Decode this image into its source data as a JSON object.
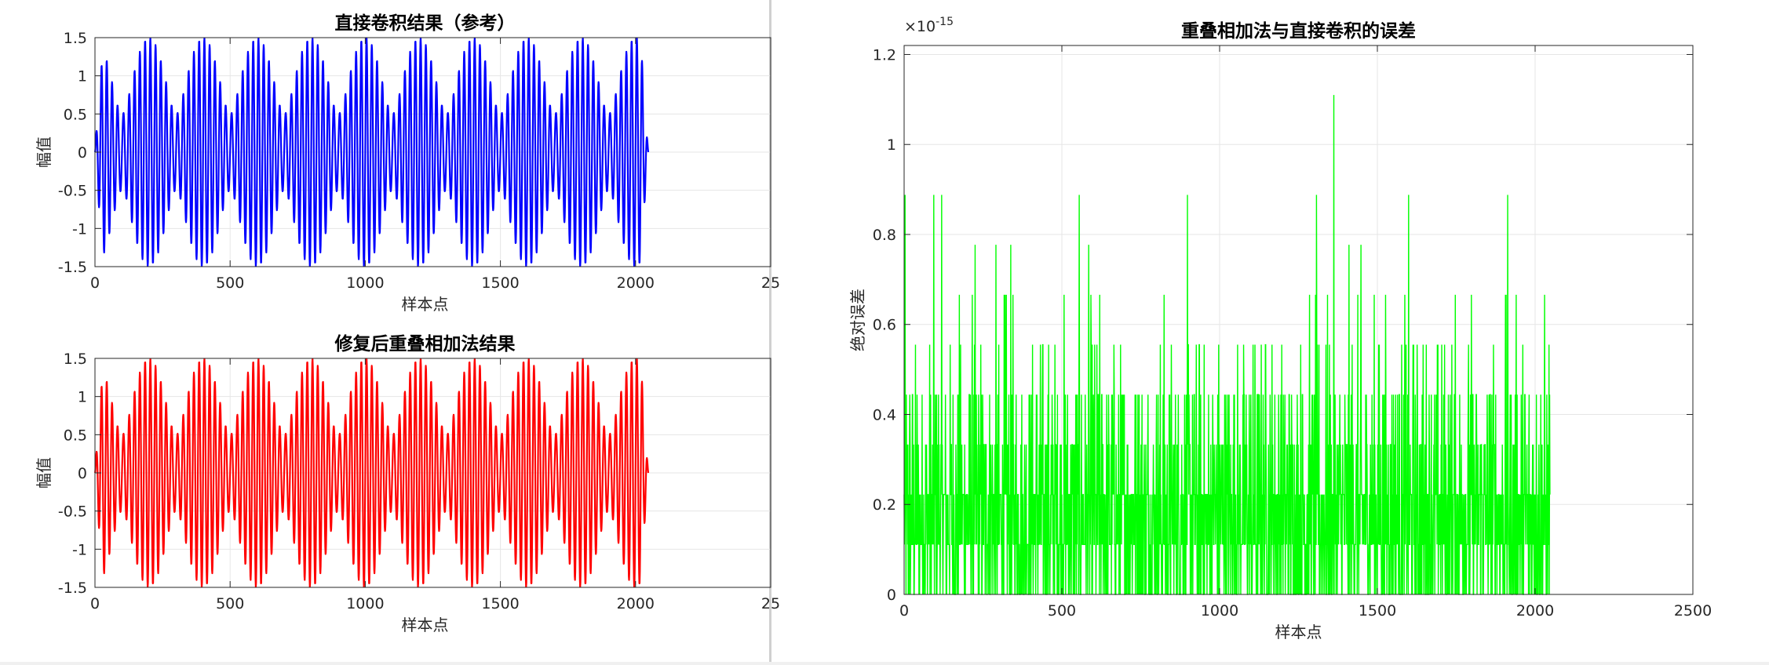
{
  "figure_left": {
    "bg_panel": "#ffffff",
    "bg_right": "#f0f0f0"
  },
  "chart_data": [
    {
      "id": "conv-direct",
      "type": "line",
      "title": "直接卷积结果（参考）",
      "xlabel": "样本点",
      "ylabel": "幅值",
      "xlim": [
        0,
        2500
      ],
      "ylim": [
        -1.5,
        1.5
      ],
      "xticks": [
        0,
        500,
        1000,
        1500,
        2000
      ],
      "xtick_labels": [
        "0",
        "500",
        "1000",
        "1500",
        "2000"
      ],
      "partial_xtick_label": "25",
      "yticks": [
        -1.5,
        -1,
        -0.5,
        0,
        0.5,
        1,
        1.5
      ],
      "ytick_labels": [
        "-1.5",
        "-1",
        "-0.5",
        "0",
        "0.5",
        "1",
        "1.5"
      ],
      "grid": true,
      "color": "#0000ff",
      "signal": {
        "x_start": 0,
        "x_end": 2047,
        "ramp_end": 30,
        "ramp_start_down": 2020,
        "components": [
          {
            "freq_cycles_per_sample": 0.05,
            "amp": 1.0
          },
          {
            "freq_cycles_per_sample": 0.055,
            "amp": 0.5
          }
        ],
        "max_abs": 1.5
      }
    },
    {
      "id": "ola-fixed",
      "type": "line",
      "title": "修复后重叠相加法结果",
      "xlabel": "样本点",
      "ylabel": "幅值",
      "xlim": [
        0,
        2500
      ],
      "ylim": [
        -1.5,
        1.5
      ],
      "xticks": [
        0,
        500,
        1000,
        1500,
        2000
      ],
      "xtick_labels": [
        "0",
        "500",
        "1000",
        "1500",
        "2000"
      ],
      "partial_xtick_label": "25",
      "yticks": [
        -1.5,
        -1,
        -0.5,
        0,
        0.5,
        1,
        1.5
      ],
      "ytick_labels": [
        "-1.5",
        "-1",
        "-0.5",
        "0",
        "0.5",
        "1",
        "1.5"
      ],
      "grid": true,
      "color": "#ff0000",
      "signal": {
        "x_start": 0,
        "x_end": 2047,
        "ramp_end": 30,
        "ramp_start_down": 2020,
        "components": [
          {
            "freq_cycles_per_sample": 0.05,
            "amp": 1.0
          },
          {
            "freq_cycles_per_sample": 0.055,
            "amp": 0.5
          }
        ],
        "max_abs": 1.5
      }
    },
    {
      "id": "error",
      "type": "line",
      "title": "重叠相加法与直接卷积的误差",
      "xlabel": "样本点",
      "ylabel": "绝对误差",
      "xlim": [
        0,
        2500
      ],
      "ylim": [
        0,
        1.22
      ],
      "y_exponent_label": "×10",
      "y_exponent_value": "-15",
      "xticks": [
        0,
        500,
        1000,
        1500,
        2000,
        2500
      ],
      "xtick_labels": [
        "0",
        "500",
        "1000",
        "1500",
        "2000",
        "2500"
      ],
      "yticks": [
        0,
        0.2,
        0.4,
        0.6,
        0.8,
        1,
        1.2
      ],
      "ytick_labels": [
        "0",
        "0.2",
        "0.4",
        "0.6",
        "0.8",
        "1",
        "1.2"
      ],
      "grid": true,
      "color": "#00ff00",
      "error_levels": [
        0,
        0.111,
        0.222,
        0.333,
        0.444,
        0.555,
        0.666,
        0.777,
        0.888,
        1.11
      ],
      "x_end": 2047
    }
  ]
}
